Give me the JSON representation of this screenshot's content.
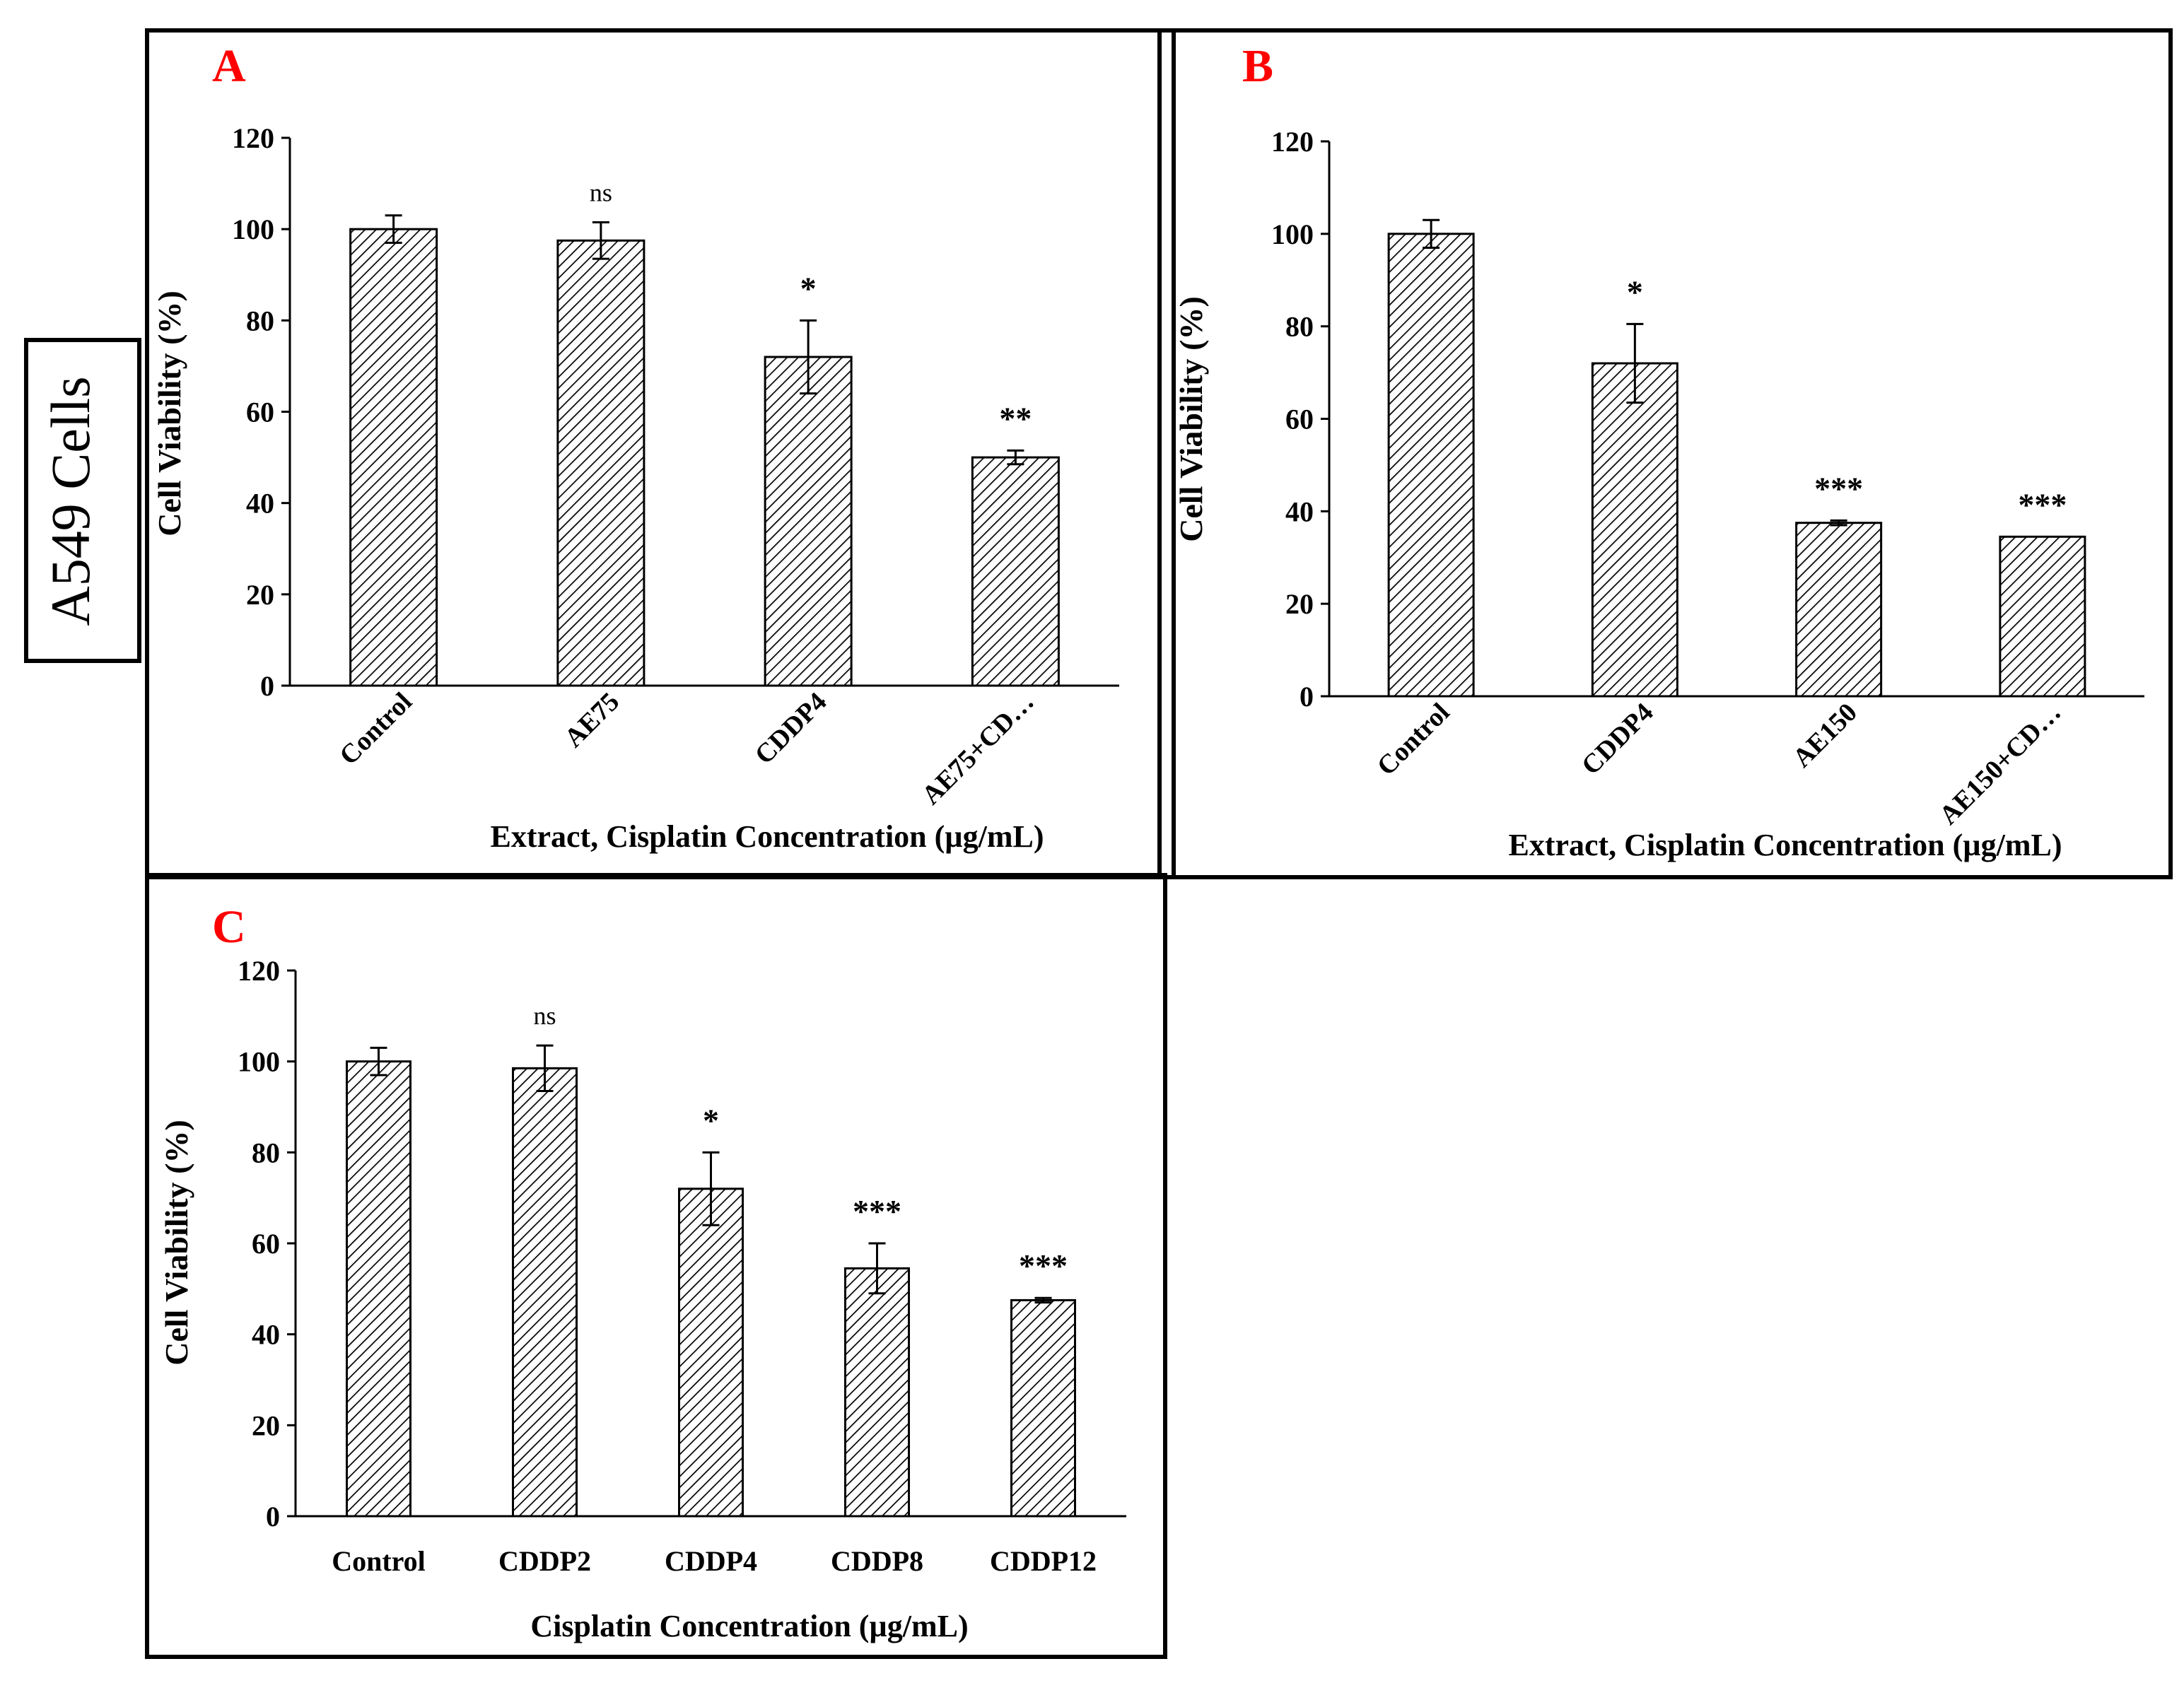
{
  "side_label": "A549 Cells",
  "colors": {
    "panel_letter": "#ff0000",
    "bar_stroke": "#000000",
    "hatch": "#000000",
    "background": "#ffffff"
  },
  "chart_data": [
    {
      "type": "bar",
      "panel": "A",
      "title": "",
      "xlabel": "Extract, Cisplatin Concentration (µg/mL)",
      "ylabel": "Cell Viability (%)",
      "ylim": [
        0,
        120
      ],
      "yticks": [
        0,
        20,
        40,
        60,
        80,
        100,
        120
      ],
      "categories": [
        "Control",
        "AE75",
        "CDDP4",
        "AE75+CD…"
      ],
      "tick_rotation": -45,
      "values": [
        100,
        97.5,
        72,
        50
      ],
      "errors": [
        3,
        4,
        8,
        1.5
      ],
      "significance": [
        "",
        "ns",
        "*",
        "**"
      ]
    },
    {
      "type": "bar",
      "panel": "B",
      "title": "",
      "xlabel": "Extract, Cisplatin Concentration (µg/mL)",
      "ylabel": "Cell Viability (%)",
      "ylim": [
        0,
        120
      ],
      "yticks": [
        0,
        20,
        40,
        60,
        80,
        100,
        120
      ],
      "categories": [
        "Control",
        "CDDP4",
        "AE150",
        "AE150+CD…"
      ],
      "tick_rotation": -45,
      "values": [
        100,
        72,
        37.5,
        34.5
      ],
      "errors": [
        3,
        8.5,
        0.5,
        0
      ],
      "significance": [
        "",
        "*",
        "***",
        "***"
      ]
    },
    {
      "type": "bar",
      "panel": "C",
      "title": "",
      "xlabel": "Cisplatin Concentration (µg/mL)",
      "ylabel": "Cell Viability (%)",
      "ylim": [
        0,
        120
      ],
      "yticks": [
        0,
        20,
        40,
        60,
        80,
        100,
        120
      ],
      "categories": [
        "Control",
        "CDDP2",
        "CDDP4",
        "CDDP8",
        "CDDP12"
      ],
      "tick_rotation": 0,
      "values": [
        100,
        98.5,
        72,
        54.5,
        47.5
      ],
      "errors": [
        3,
        5,
        8,
        5.5,
        0.5
      ],
      "significance": [
        "",
        "ns",
        "*",
        "***",
        "***"
      ]
    }
  ]
}
